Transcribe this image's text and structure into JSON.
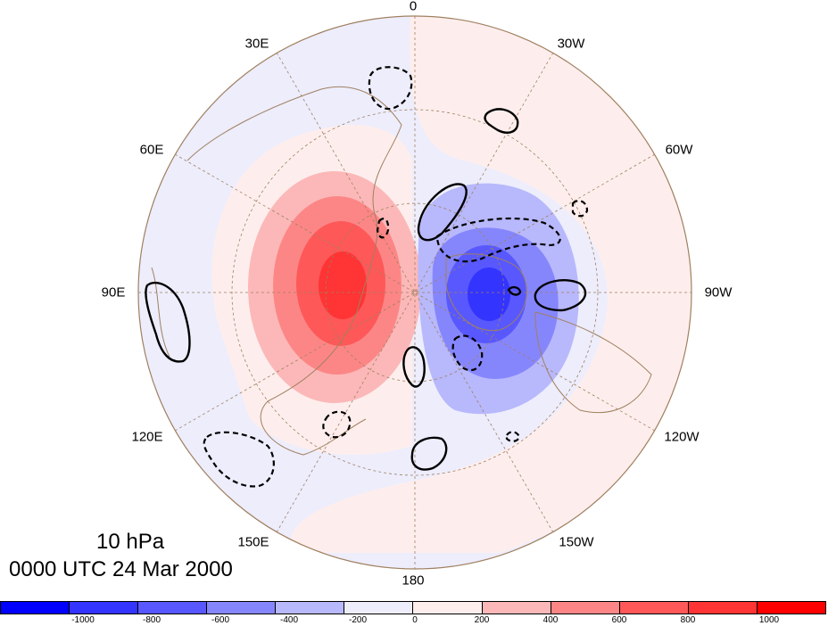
{
  "title": {
    "level": "10 hPa",
    "time": "0000 UTC 24 Mar 2000"
  },
  "longitude_labels": {
    "lon_0": "0",
    "lon_30w": "30W",
    "lon_60w": "60W",
    "lon_90w": "90W",
    "lon_120w": "120W",
    "lon_150w": "150W",
    "lon_180": "180",
    "lon_150e": "150E",
    "lon_120e": "120E",
    "lon_90e": "90E",
    "lon_60e": "60E",
    "lon_30e": "30E"
  },
  "colorbar": {
    "colors": [
      "#0000ff",
      "#3434ff",
      "#5858fe",
      "#8686fc",
      "#b8b8fc",
      "#ededfc",
      "#fdeeed",
      "#fcb8b8",
      "#fc8686",
      "#fe5858",
      "#ff3434",
      "#ff0000"
    ],
    "labels": {
      "t_m1000": "-1000",
      "t_m800": "-800",
      "t_m600": "-600",
      "t_m400": "-400",
      "t_m200": "-200",
      "t_0": "0",
      "t_200": "200",
      "t_400": "400",
      "t_600": "600",
      "t_800": "800",
      "t_1000": "1000"
    }
  },
  "map_colors": {
    "coastline": "#a08060",
    "grid": "#a08060",
    "contour": "#000000"
  }
}
